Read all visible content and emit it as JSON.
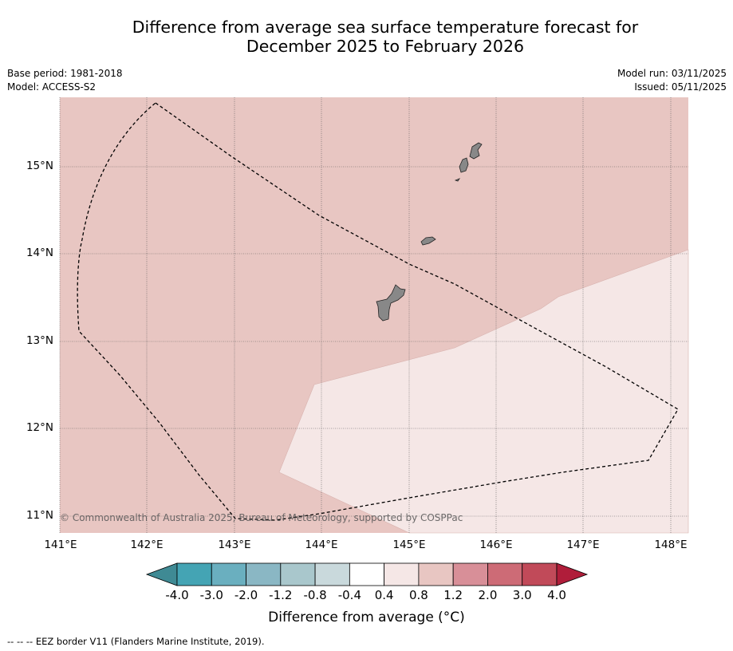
{
  "title": {
    "line1": "Difference from average sea surface temperature forecast for",
    "line2": "December 2025 to February 2026"
  },
  "meta": {
    "base_period": "Base period: 1981-2018",
    "model": "Model: ACCESS-S2",
    "model_run": "Model run: 03/11/2025",
    "issued": "Issued: 05/11/2025"
  },
  "map": {
    "latitude_labels": [
      "15°N",
      "14°N",
      "13°N",
      "12°N",
      "11°N"
    ],
    "longitude_labels": [
      "141°E",
      "142°E",
      "143°E",
      "144°E",
      "145°E",
      "146°E",
      "147°E",
      "148°E"
    ],
    "copyright": "© Commonwealth of Australia 2025, Bureau of Meteorology, supported by COSPPac",
    "colors": {
      "anomaly_0_8_to_1_2": "#e8c6c2",
      "anomaly_0_4_to_0_8": "#f5e7e6",
      "land": "#888888"
    }
  },
  "colorbar": {
    "ticks": [
      "-4.0",
      "-3.0",
      "-2.0",
      "-1.2",
      "-0.8",
      "-0.4",
      "0.4",
      "0.8",
      "1.2",
      "2.0",
      "3.0",
      "4.0"
    ],
    "colors": [
      "#44a4b4",
      "#6aafbf",
      "#8ab7c4",
      "#a9c7cc",
      "#c9d9dc",
      "#ffffff",
      "#f5e7e6",
      "#e8c6c2",
      "#d88f98",
      "#cd6b76",
      "#c14a59"
    ],
    "under_color": "#3f8a94",
    "over_color": "#b01d3a",
    "label": "Difference from average (°C)"
  },
  "legend": {
    "eez_line": "-- -- -- EEZ border V11 (Flanders Marine Institute, 2019)."
  }
}
